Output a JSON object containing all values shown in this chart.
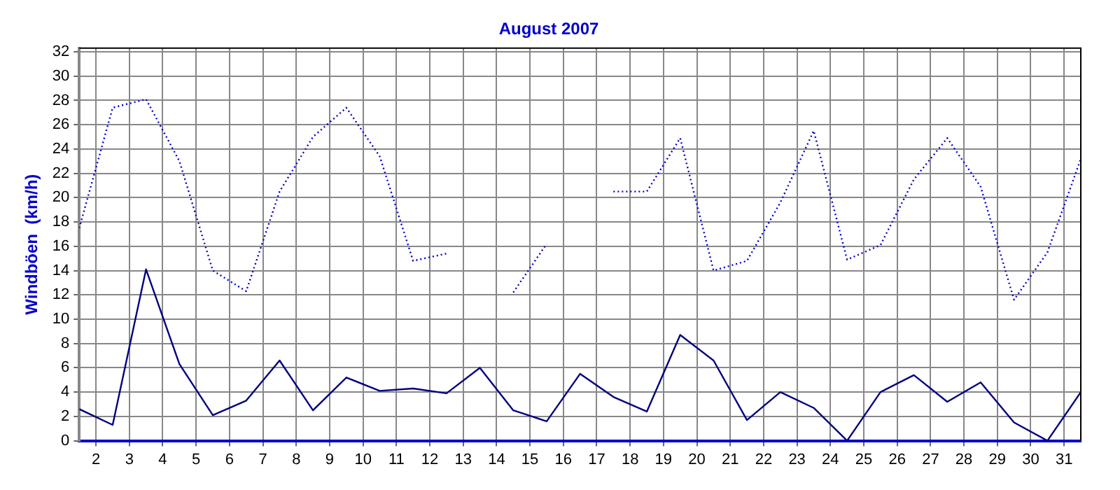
{
  "chart_data": {
    "type": "line",
    "title": "August 2007",
    "ylabel": "Windböen  (km/h)",
    "x": [
      1.5,
      2.5,
      3.5,
      4.5,
      5.5,
      6.5,
      7.5,
      8.5,
      9.5,
      10.5,
      11.5,
      12.5,
      13.5,
      14.5,
      15.5,
      16.5,
      17.5,
      18.5,
      19.5,
      20.5,
      21.5,
      22.5,
      23.5,
      24.5,
      25.5,
      26.5,
      27.5,
      28.5,
      29.5,
      30.5,
      31.5
    ],
    "series": [
      {
        "color": "#0000cc",
        "line_style": "dotted",
        "values": [
          17.5,
          27.4,
          28.1,
          23,
          14,
          12.3,
          20.5,
          25,
          27.4,
          23.4,
          14.8,
          15.4,
          null,
          12.2,
          16.2,
          null,
          20.5,
          20.5,
          24.9,
          14,
          14.8,
          19.6,
          25.5,
          14.9,
          16.1,
          21.5,
          24.9,
          20.9,
          11.6,
          15.5,
          23.2
        ]
      },
      {
        "color": "#000080",
        "line_style": "solid",
        "values": [
          2.6,
          1.3,
          14.1,
          6.3,
          2.1,
          3.3,
          6.6,
          2.5,
          5.2,
          4.1,
          4.3,
          3.9,
          6,
          2.5,
          1.6,
          5.5,
          3.6,
          2.4,
          8.7,
          6.6,
          1.7,
          4,
          2.7,
          0,
          4,
          5.4,
          3.2,
          4.8,
          1.5,
          0,
          4
        ]
      }
    ],
    "xlim": [
      1.5,
      31.5
    ],
    "xticks": [
      2,
      3,
      4,
      5,
      6,
      7,
      8,
      9,
      10,
      11,
      12,
      13,
      14,
      15,
      16,
      17,
      18,
      19,
      20,
      21,
      22,
      23,
      24,
      25,
      26,
      27,
      28,
      29,
      30,
      31
    ],
    "ylim": [
      0,
      32.3
    ],
    "yticks": [
      0,
      2,
      4,
      6,
      8,
      10,
      12,
      14,
      16,
      18,
      20,
      22,
      24,
      26,
      28,
      30,
      32
    ],
    "grid": true,
    "legend": false,
    "marker": "none"
  }
}
